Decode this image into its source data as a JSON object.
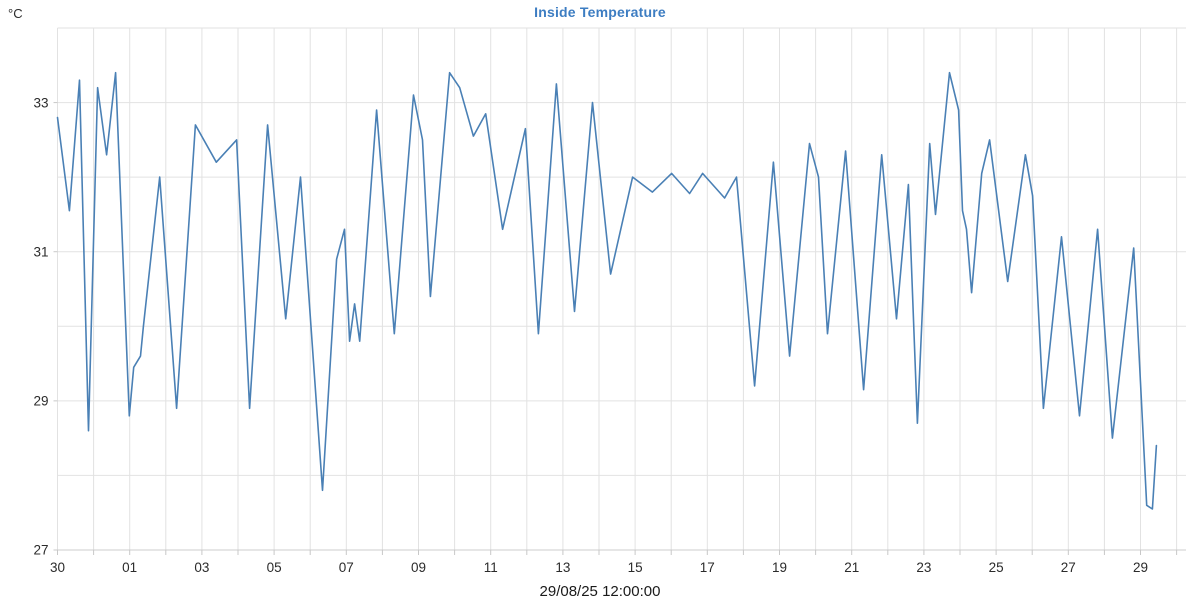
{
  "chart": {
    "title": "Inside Temperature",
    "unit": "°C",
    "datetime_label": "29/08/25 12:00:00"
  },
  "chart_data": {
    "type": "line",
    "title": "Inside Temperature",
    "ylabel": "°C",
    "series_name": "Inside Temperature",
    "legend": "none",
    "grid": true,
    "x_axis_note": "days, tick labels are day-of-month from 30 Aug to 29 Sep",
    "x_tick_days": [
      0,
      2,
      4,
      6,
      8,
      10,
      12,
      14,
      16,
      18,
      20,
      22,
      24,
      26,
      28,
      30
    ],
    "x_tick_labels": [
      "30",
      "01",
      "03",
      "05",
      "07",
      "09",
      "11",
      "13",
      "15",
      "17",
      "19",
      "21",
      "23",
      "25",
      "27",
      "29"
    ],
    "x_range_days": [
      0,
      31.26
    ],
    "y_ticks_labeled": [
      27,
      29,
      31,
      33
    ],
    "y_gridline_step": 1,
    "y_range": [
      27,
      34
    ],
    "line_color": "#4a80b5",
    "grid_color": "#e2e2e2",
    "axis_color": "#cccccc",
    "tick_color": "#c8c8c8",
    "label_color": "#2b2b2b",
    "title_color": "#3d7dc2",
    "footer_label": "29/08/25 12:00:00",
    "points_day_temp": [
      [
        0.0,
        32.8
      ],
      [
        0.33,
        31.55
      ],
      [
        0.61,
        33.3
      ],
      [
        0.86,
        28.6
      ],
      [
        1.11,
        33.2
      ],
      [
        1.36,
        32.3
      ],
      [
        1.61,
        33.4
      ],
      [
        1.99,
        28.8
      ],
      [
        2.11,
        29.45
      ],
      [
        2.3,
        29.6
      ],
      [
        2.38,
        30.0
      ],
      [
        2.83,
        32.0
      ],
      [
        3.3,
        28.9
      ],
      [
        3.82,
        32.7
      ],
      [
        4.4,
        32.2
      ],
      [
        4.96,
        32.5
      ],
      [
        5.32,
        28.9
      ],
      [
        5.82,
        32.7
      ],
      [
        6.32,
        30.1
      ],
      [
        6.73,
        32.0
      ],
      [
        7.34,
        27.8
      ],
      [
        7.73,
        30.9
      ],
      [
        7.95,
        31.3
      ],
      [
        8.09,
        29.8
      ],
      [
        8.23,
        30.3
      ],
      [
        8.37,
        29.8
      ],
      [
        8.84,
        32.9
      ],
      [
        9.33,
        29.9
      ],
      [
        9.86,
        33.1
      ],
      [
        10.11,
        32.5
      ],
      [
        10.33,
        30.4
      ],
      [
        10.86,
        33.4
      ],
      [
        11.14,
        33.2
      ],
      [
        11.52,
        32.55
      ],
      [
        11.86,
        32.85
      ],
      [
        12.33,
        31.3
      ],
      [
        12.96,
        32.65
      ],
      [
        13.32,
        29.9
      ],
      [
        13.82,
        33.25
      ],
      [
        14.32,
        30.2
      ],
      [
        14.82,
        33.0
      ],
      [
        15.32,
        30.7
      ],
      [
        15.93,
        32.0
      ],
      [
        16.48,
        31.8
      ],
      [
        17.01,
        32.05
      ],
      [
        17.51,
        31.78
      ],
      [
        17.87,
        32.05
      ],
      [
        18.48,
        31.72
      ],
      [
        18.81,
        32.0
      ],
      [
        19.31,
        29.2
      ],
      [
        19.83,
        32.2
      ],
      [
        20.28,
        29.6
      ],
      [
        20.83,
        32.45
      ],
      [
        21.08,
        32.0
      ],
      [
        21.33,
        29.9
      ],
      [
        21.83,
        32.35
      ],
      [
        22.33,
        29.15
      ],
      [
        22.83,
        32.3
      ],
      [
        23.24,
        30.1
      ],
      [
        23.57,
        31.9
      ],
      [
        23.82,
        28.7
      ],
      [
        24.16,
        32.45
      ],
      [
        24.32,
        31.5
      ],
      [
        24.71,
        33.4
      ],
      [
        24.96,
        32.9
      ],
      [
        25.07,
        31.55
      ],
      [
        25.18,
        31.3
      ],
      [
        25.32,
        30.45
      ],
      [
        25.6,
        32.05
      ],
      [
        25.82,
        32.5
      ],
      [
        26.32,
        30.6
      ],
      [
        26.81,
        32.3
      ],
      [
        27.01,
        31.75
      ],
      [
        27.31,
        28.9
      ],
      [
        27.81,
        31.2
      ],
      [
        28.31,
        28.8
      ],
      [
        28.81,
        31.3
      ],
      [
        29.22,
        28.5
      ],
      [
        29.81,
        31.05
      ],
      [
        30.17,
        27.6
      ],
      [
        30.33,
        27.55
      ],
      [
        30.44,
        28.4
      ]
    ]
  }
}
